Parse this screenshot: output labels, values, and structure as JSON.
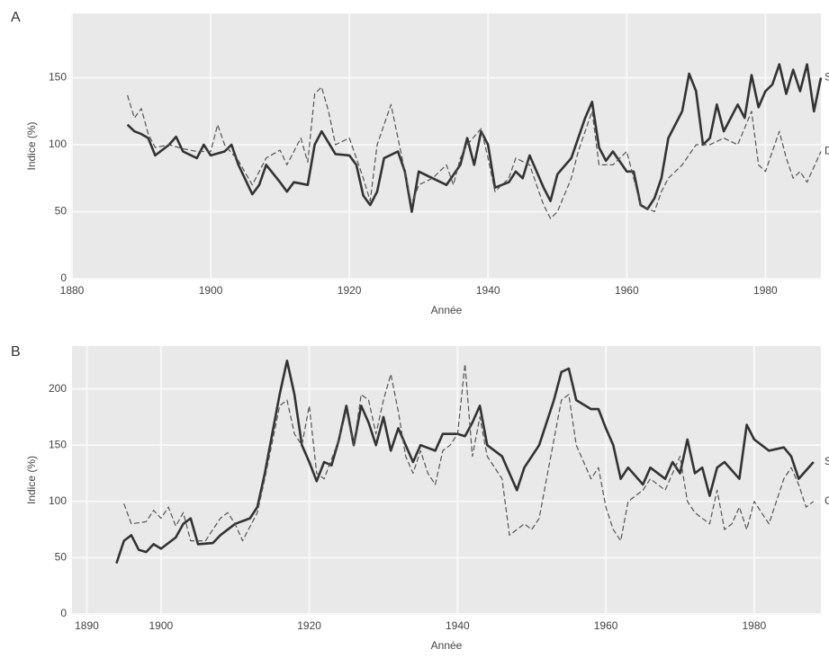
{
  "chart_data": [
    {
      "type": "line",
      "title": "A",
      "xlabel": "Année",
      "ylabel": "Indice (%)",
      "xlim": [
        1880,
        1988
      ],
      "xticks": [
        1880,
        1900,
        1920,
        1940,
        1960,
        1980
      ],
      "ylim": [
        0,
        198
      ],
      "yticks": [
        0,
        50,
        100,
        150
      ],
      "grid": true,
      "series": [
        {
          "name": "S",
          "color": "#333333",
          "dashed": false,
          "x": [
            1888,
            1889,
            1890,
            1891,
            1892,
            1894,
            1895,
            1896,
            1898,
            1899,
            1900,
            1902,
            1903,
            1904,
            1906,
            1907,
            1908,
            1910,
            1911,
            1912,
            1914,
            1915,
            1916,
            1918,
            1920,
            1921,
            1922,
            1923,
            1924,
            1925,
            1927,
            1928,
            1929,
            1930,
            1932,
            1934,
            1936,
            1937,
            1938,
            1939,
            1940,
            1941,
            1943,
            1944,
            1945,
            1946,
            1948,
            1949,
            1950,
            1952,
            1953,
            1954,
            1955,
            1956,
            1957,
            1958,
            1960,
            1961,
            1962,
            1963,
            1964,
            1965,
            1966,
            1968,
            1969,
            1970,
            1971,
            1972,
            1973,
            1974,
            1976,
            1977,
            1978,
            1979,
            1980,
            1981,
            1982,
            1983,
            1984,
            1985,
            1986,
            1987,
            1988
          ],
          "values": [
            115,
            110,
            108,
            105,
            92,
            100,
            106,
            95,
            90,
            100,
            92,
            95,
            100,
            85,
            63,
            70,
            85,
            72,
            65,
            72,
            70,
            100,
            110,
            93,
            92,
            85,
            62,
            55,
            65,
            90,
            95,
            80,
            50,
            80,
            75,
            70,
            85,
            105,
            85,
            110,
            100,
            68,
            72,
            80,
            75,
            92,
            68,
            58,
            78,
            90,
            105,
            120,
            132,
            98,
            88,
            95,
            80,
            80,
            55,
            52,
            60,
            75,
            105,
            125,
            153,
            140,
            100,
            105,
            130,
            110,
            130,
            120,
            152,
            128,
            140,
            145,
            160,
            138,
            156,
            140,
            160,
            125,
            150
          ]
        },
        {
          "name": "D",
          "color": "#555555",
          "dashed": true,
          "x": [
            1888,
            1889,
            1890,
            1891,
            1892,
            1894,
            1896,
            1898,
            1900,
            1901,
            1902,
            1904,
            1906,
            1908,
            1910,
            1911,
            1913,
            1914,
            1915,
            1916,
            1917,
            1918,
            1920,
            1921,
            1922,
            1923,
            1924,
            1926,
            1927,
            1928,
            1929,
            1930,
            1932,
            1934,
            1935,
            1936,
            1937,
            1939,
            1940,
            1941,
            1943,
            1944,
            1946,
            1948,
            1949,
            1950,
            1952,
            1953,
            1954,
            1955,
            1956,
            1958,
            1960,
            1962,
            1964,
            1965,
            1966,
            1968,
            1970,
            1972,
            1974,
            1976,
            1978,
            1979,
            1980,
            1982,
            1983,
            1984,
            1985,
            1986,
            1988
          ],
          "values": [
            137,
            120,
            127,
            108,
            98,
            100,
            97,
            95,
            95,
            115,
            100,
            88,
            70,
            90,
            96,
            85,
            105,
            87,
            138,
            143,
            125,
            100,
            105,
            90,
            75,
            58,
            100,
            130,
            105,
            80,
            55,
            70,
            75,
            85,
            70,
            90,
            100,
            112,
            90,
            65,
            75,
            90,
            85,
            55,
            45,
            50,
            75,
            95,
            110,
            125,
            85,
            85,
            95,
            55,
            50,
            65,
            75,
            85,
            100,
            100,
            105,
            100,
            125,
            85,
            80,
            110,
            90,
            75,
            80,
            72,
            95
          ]
        }
      ]
    },
    {
      "type": "line",
      "title": "B",
      "xlabel": "Année",
      "ylabel": "Indice (%)",
      "xlim": [
        1888,
        1989
      ],
      "xticks": [
        1890,
        1900,
        1920,
        1940,
        1960,
        1980
      ],
      "ylim": [
        0,
        238
      ],
      "yticks": [
        0,
        50,
        100,
        150,
        200
      ],
      "grid": true,
      "series": [
        {
          "name": "S",
          "color": "#333333",
          "dashed": false,
          "x": [
            1894,
            1895,
            1896,
            1897,
            1898,
            1899,
            1900,
            1902,
            1903,
            1904,
            1905,
            1907,
            1908,
            1910,
            1912,
            1913,
            1914,
            1915,
            1916,
            1917,
            1918,
            1919,
            1920,
            1921,
            1922,
            1923,
            1924,
            1925,
            1926,
            1927,
            1928,
            1929,
            1930,
            1931,
            1932,
            1933,
            1934,
            1935,
            1937,
            1938,
            1940,
            1941,
            1942,
            1943,
            1944,
            1946,
            1947,
            1948,
            1949,
            1951,
            1953,
            1954,
            1955,
            1956,
            1958,
            1959,
            1960,
            1961,
            1962,
            1963,
            1965,
            1966,
            1968,
            1969,
            1970,
            1971,
            1972,
            1973,
            1974,
            1975,
            1976,
            1978,
            1979,
            1980,
            1982,
            1984,
            1985,
            1986,
            1988
          ],
          "values": [
            45,
            65,
            70,
            57,
            55,
            62,
            58,
            68,
            80,
            85,
            62,
            63,
            70,
            80,
            85,
            95,
            125,
            160,
            195,
            225,
            195,
            150,
            135,
            118,
            135,
            132,
            155,
            185,
            150,
            185,
            170,
            150,
            175,
            145,
            165,
            150,
            135,
            150,
            145,
            160,
            160,
            158,
            170,
            185,
            150,
            140,
            125,
            110,
            130,
            150,
            190,
            215,
            218,
            190,
            182,
            182,
            165,
            150,
            120,
            130,
            115,
            130,
            120,
            135,
            125,
            155,
            125,
            130,
            105,
            130,
            135,
            120,
            168,
            155,
            145,
            148,
            140,
            120,
            135
          ]
        },
        {
          "name": "C",
          "color": "#555555",
          "dashed": true,
          "x": [
            1895,
            1896,
            1898,
            1899,
            1900,
            1901,
            1902,
            1903,
            1904,
            1906,
            1908,
            1909,
            1910,
            1911,
            1913,
            1914,
            1916,
            1917,
            1918,
            1919,
            1920,
            1921,
            1922,
            1924,
            1925,
            1926,
            1927,
            1928,
            1929,
            1930,
            1931,
            1932,
            1933,
            1934,
            1935,
            1936,
            1937,
            1938,
            1939,
            1940,
            1941,
            1942,
            1943,
            1944,
            1946,
            1947,
            1949,
            1950,
            1951,
            1952,
            1954,
            1955,
            1956,
            1958,
            1959,
            1960,
            1961,
            1962,
            1963,
            1965,
            1966,
            1968,
            1970,
            1971,
            1972,
            1974,
            1975,
            1976,
            1977,
            1978,
            1979,
            1980,
            1982,
            1984,
            1985,
            1986,
            1987,
            1988
          ],
          "values": [
            98,
            80,
            82,
            92,
            85,
            95,
            78,
            90,
            65,
            65,
            85,
            90,
            80,
            65,
            90,
            120,
            185,
            190,
            160,
            150,
            185,
            125,
            120,
            155,
            180,
            150,
            195,
            190,
            160,
            190,
            213,
            180,
            140,
            125,
            145,
            125,
            115,
            145,
            150,
            160,
            222,
            140,
            175,
            140,
            120,
            70,
            80,
            75,
            85,
            120,
            190,
            195,
            150,
            120,
            130,
            95,
            75,
            65,
            100,
            110,
            120,
            110,
            140,
            100,
            90,
            80,
            110,
            75,
            80,
            95,
            75,
            100,
            80,
            120,
            130,
            115,
            95,
            100
          ]
        }
      ]
    }
  ]
}
